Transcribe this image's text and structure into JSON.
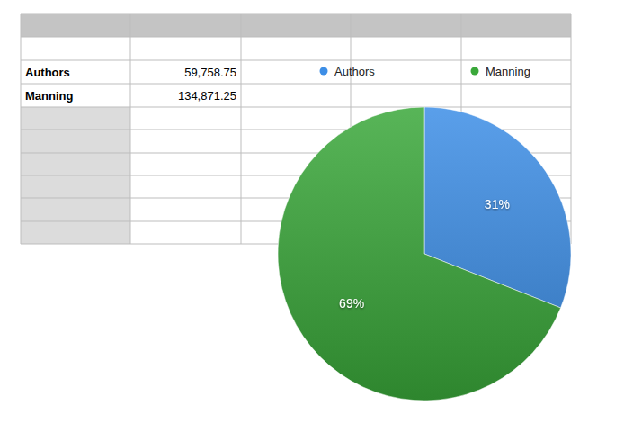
{
  "table": {
    "rows": [
      [
        "Authors",
        "59,758.75"
      ],
      [
        "Manning",
        "134,871.25"
      ]
    ]
  },
  "chart_data": {
    "type": "pie",
    "categories": [
      "Authors",
      "Manning"
    ],
    "values": [
      31,
      69
    ],
    "value_labels": [
      "31%",
      "69%"
    ],
    "colors": [
      "#3d8ee6",
      "#3aa83a"
    ],
    "data_labels": true,
    "legend": "top"
  }
}
